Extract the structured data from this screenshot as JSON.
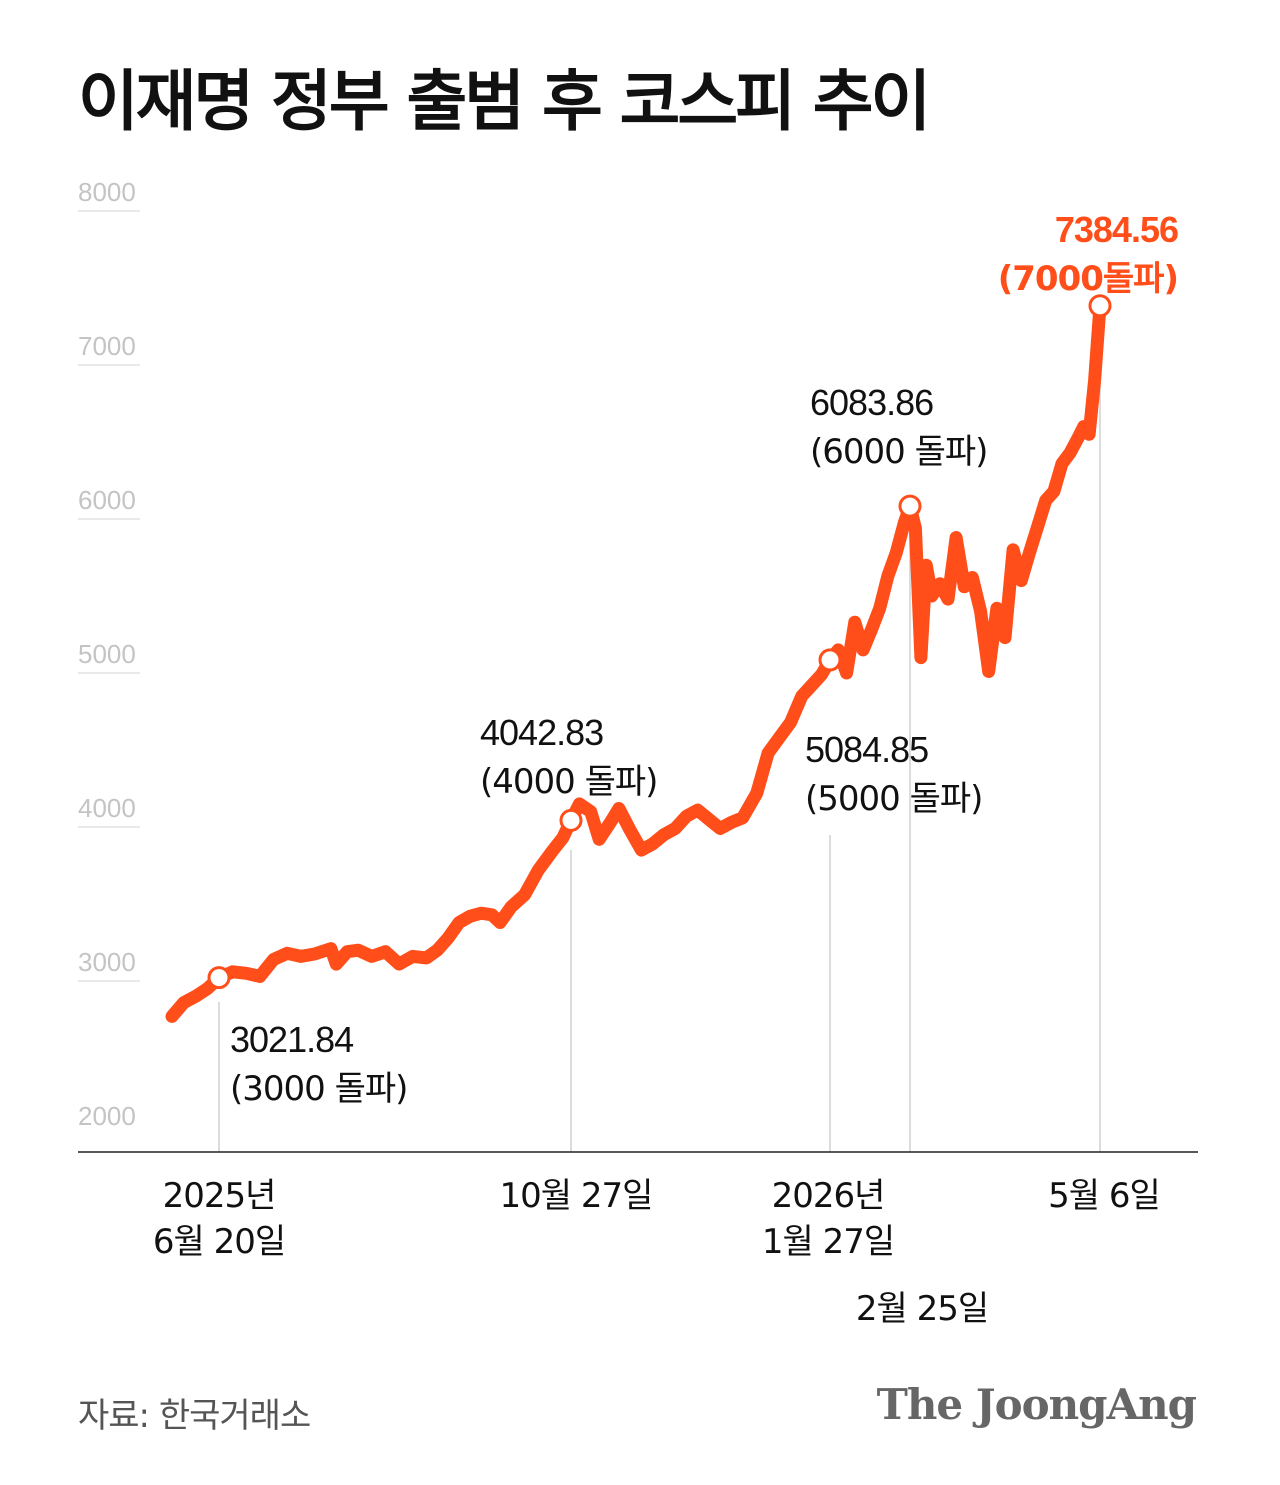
{
  "chart_data": {
    "type": "line",
    "title": "이재명 정부 출범 후 코스피 추이",
    "ylim": [
      2000,
      8000
    ],
    "yticks": [
      "8000",
      "7000",
      "6000",
      "5000",
      "4000",
      "3000",
      "2000"
    ],
    "grid": false,
    "accent_color": "#ff4e1a",
    "x_labels": [
      {
        "lines": [
          "2025년",
          "6월 20일"
        ]
      },
      {
        "lines": [
          "10월 27일"
        ]
      },
      {
        "lines": [
          "2026년",
          "1월 27일"
        ]
      },
      {
        "lines": [
          "2월 25일"
        ]
      },
      {
        "lines": [
          "5월 6일"
        ]
      }
    ],
    "annotations": [
      {
        "date": "2025-06-20",
        "value": 3021.84,
        "label": "3021.84",
        "sublabel": "(3000 돌파)"
      },
      {
        "date": "2025-10-27",
        "value": 4042.83,
        "label": "4042.83",
        "sublabel": "(4000 돌파)"
      },
      {
        "date": "2026-01-27",
        "value": 5084.85,
        "label": "5084.85",
        "sublabel": "(5000 돌파)"
      },
      {
        "date": "2026-02-25",
        "value": 6083.86,
        "label": "6083.86",
        "sublabel": "(6000 돌파)"
      },
      {
        "date": "2026-05-06",
        "value": 7384.56,
        "label": "7384.56",
        "sublabel": "(7000돌파)",
        "highlight": true
      }
    ],
    "series": [
      {
        "points": [
          [
            "2025-06-04",
            2770
          ],
          [
            "2025-06-08",
            2860
          ],
          [
            "2025-06-12",
            2900
          ],
          [
            "2025-06-16",
            2950
          ],
          [
            "2025-06-20",
            3021
          ],
          [
            "2025-06-25",
            3060
          ],
          [
            "2025-06-30",
            3050
          ],
          [
            "2025-07-05",
            3030
          ],
          [
            "2025-07-10",
            3140
          ],
          [
            "2025-07-15",
            3180
          ],
          [
            "2025-07-20",
            3160
          ],
          [
            "2025-07-25",
            3175
          ],
          [
            "2025-07-31",
            3210
          ],
          [
            "2025-08-02",
            3110
          ],
          [
            "2025-08-06",
            3190
          ],
          [
            "2025-08-10",
            3200
          ],
          [
            "2025-08-15",
            3160
          ],
          [
            "2025-08-20",
            3190
          ],
          [
            "2025-08-25",
            3110
          ],
          [
            "2025-08-30",
            3160
          ],
          [
            "2025-09-04",
            3150
          ],
          [
            "2025-09-08",
            3200
          ],
          [
            "2025-09-12",
            3280
          ],
          [
            "2025-09-16",
            3380
          ],
          [
            "2025-09-20",
            3420
          ],
          [
            "2025-09-24",
            3440
          ],
          [
            "2025-09-28",
            3430
          ],
          [
            "2025-10-01",
            3380
          ],
          [
            "2025-10-05",
            3480
          ],
          [
            "2025-10-10",
            3560
          ],
          [
            "2025-10-15",
            3720
          ],
          [
            "2025-10-20",
            3840
          ],
          [
            "2025-10-24",
            3930
          ],
          [
            "2025-10-27",
            4042
          ],
          [
            "2025-10-30",
            4150
          ],
          [
            "2025-11-03",
            4100
          ],
          [
            "2025-11-06",
            3920
          ],
          [
            "2025-11-10",
            4030
          ],
          [
            "2025-11-13",
            4120
          ],
          [
            "2025-11-17",
            3980
          ],
          [
            "2025-11-21",
            3850
          ],
          [
            "2025-11-25",
            3890
          ],
          [
            "2025-11-29",
            3950
          ],
          [
            "2025-12-03",
            3990
          ],
          [
            "2025-12-07",
            4070
          ],
          [
            "2025-12-11",
            4110
          ],
          [
            "2025-12-15",
            4050
          ],
          [
            "2025-12-19",
            3990
          ],
          [
            "2025-12-23",
            4030
          ],
          [
            "2025-12-27",
            4060
          ],
          [
            "2026-01-01",
            4220
          ],
          [
            "2026-01-05",
            4480
          ],
          [
            "2026-01-09",
            4580
          ],
          [
            "2026-01-13",
            4680
          ],
          [
            "2026-01-17",
            4850
          ],
          [
            "2026-01-21",
            4930
          ],
          [
            "2026-01-24",
            4990
          ],
          [
            "2026-01-27",
            5084
          ],
          [
            "2026-01-30",
            5150
          ],
          [
            "2026-02-02",
            5000
          ],
          [
            "2026-02-05",
            5330
          ],
          [
            "2026-02-08",
            5150
          ],
          [
            "2026-02-11",
            5280
          ],
          [
            "2026-02-14",
            5420
          ],
          [
            "2026-02-17",
            5630
          ],
          [
            "2026-02-20",
            5780
          ],
          [
            "2026-02-23",
            5980
          ],
          [
            "2026-02-25",
            6083
          ],
          [
            "2026-02-27",
            5940
          ],
          [
            "2026-03-01",
            5100
          ],
          [
            "2026-03-03",
            5700
          ],
          [
            "2026-03-05",
            5500
          ],
          [
            "2026-03-08",
            5580
          ],
          [
            "2026-03-11",
            5480
          ],
          [
            "2026-03-14",
            5880
          ],
          [
            "2026-03-17",
            5560
          ],
          [
            "2026-03-20",
            5620
          ],
          [
            "2026-03-23",
            5400
          ],
          [
            "2026-03-26",
            5010
          ],
          [
            "2026-03-29",
            5420
          ],
          [
            "2026-04-01",
            5230
          ],
          [
            "2026-04-04",
            5800
          ],
          [
            "2026-04-07",
            5600
          ],
          [
            "2026-04-10",
            5780
          ],
          [
            "2026-04-13",
            5950
          ],
          [
            "2026-04-16",
            6120
          ],
          [
            "2026-04-19",
            6180
          ],
          [
            "2026-04-22",
            6360
          ],
          [
            "2026-04-25",
            6430
          ],
          [
            "2026-04-28",
            6530
          ],
          [
            "2026-04-30",
            6600
          ],
          [
            "2026-05-02",
            6550
          ],
          [
            "2026-05-04",
            6900
          ],
          [
            "2026-05-06",
            7384
          ]
        ]
      }
    ]
  },
  "footer": {
    "source": "자료: 한국거래소",
    "logo": "The JoongAng"
  }
}
